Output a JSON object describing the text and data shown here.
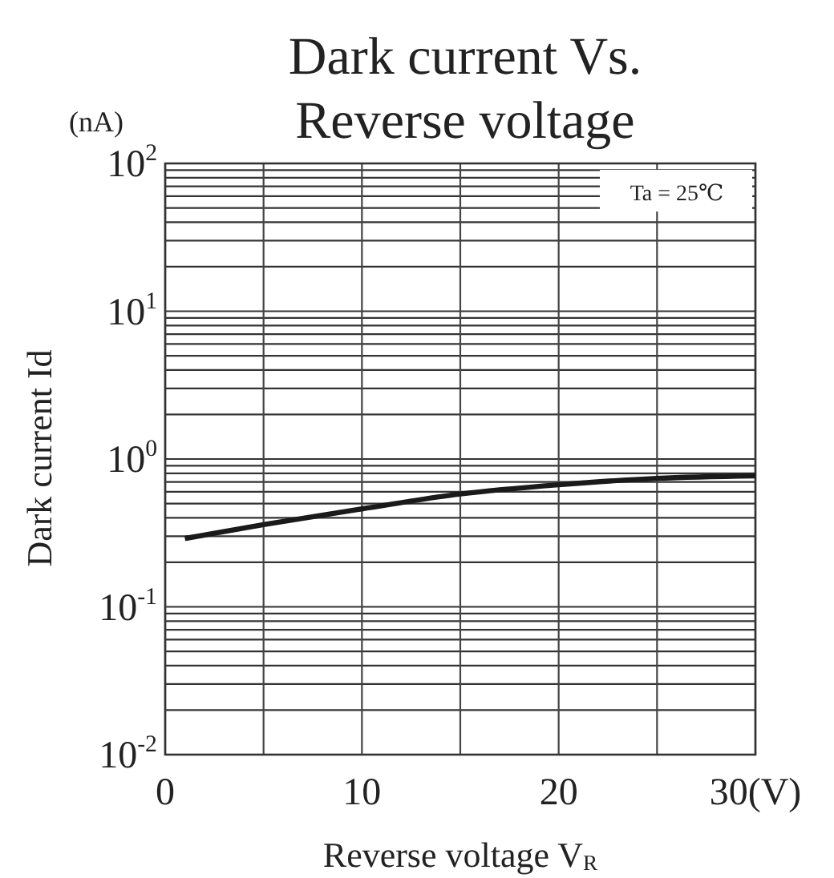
{
  "chart_data": {
    "type": "line",
    "title": "Dark current Vs.\nReverse voltage",
    "xlabel": "Reverse voltage  V$_{R}$",
    "ylabel": "Dark current  Id",
    "annotations": [
      "(nA)",
      "Ta = 25℃"
    ],
    "x": [
      1,
      5,
      10,
      15,
      20,
      25,
      30
    ],
    "series": [
      {
        "color": "#1a1a1a",
        "values": [
          0.29,
          0.36,
          0.46,
          0.58,
          0.67,
          0.74,
          0.77
        ]
      }
    ],
    "xlim": [
      0,
      30
    ],
    "xticks": [
      0,
      {
        "value": 5,
        "label": null
      },
      10,
      {
        "value": 15,
        "label": null
      },
      20,
      {
        "value": 25,
        "label": null
      },
      {
        "value": 30,
        "label": "30(V)"
      }
    ],
    "ylim": [
      0.01,
      100
    ],
    "log": true,
    "grid": true,
    "marker": "none",
    "line_style": "solid",
    "yticks": [
      {
        "value": 0.01,
        "label": "10$^{-2}$"
      },
      {
        "value": 0.02,
        "label": null
      },
      {
        "value": 0.03,
        "label": null
      },
      {
        "value": 0.04,
        "label": null
      },
      {
        "value": 0.05,
        "label": null
      },
      {
        "value": 0.06,
        "label": null
      },
      {
        "value": 0.07,
        "label": null
      },
      {
        "value": 0.08,
        "label": null
      },
      {
        "value": 0.09,
        "label": null
      },
      {
        "value": 0.1,
        "label": "10$^{-1}$"
      },
      {
        "value": 0.2,
        "label": null
      },
      {
        "value": 0.3,
        "label": null
      },
      {
        "value": 0.4,
        "label": null
      },
      {
        "value": 0.5,
        "label": null
      },
      {
        "value": 0.6,
        "label": null
      },
      {
        "value": 0.7,
        "label": null
      },
      {
        "value": 0.8,
        "label": null
      },
      {
        "value": 0.9,
        "label": null
      },
      {
        "value": 1,
        "label": "10$^{0}$"
      },
      {
        "value": 2,
        "label": null
      },
      {
        "value": 3,
        "label": null
      },
      {
        "value": 4,
        "label": null
      },
      {
        "value": 5,
        "label": null
      },
      {
        "value": 6,
        "label": null
      },
      {
        "value": 7,
        "label": null
      },
      {
        "value": 8,
        "label": null
      },
      {
        "value": 9,
        "label": null
      },
      {
        "value": 10,
        "label": "10$^{1}$"
      },
      {
        "value": 20,
        "label": null
      },
      {
        "value": 30,
        "label": null
      },
      {
        "value": 40,
        "label": null
      },
      {
        "value": 50,
        "label": null
      },
      {
        "value": 60,
        "label": null
      },
      {
        "value": 70,
        "label": null
      },
      {
        "value": 80,
        "label": null
      },
      {
        "value": 90,
        "label": null
      },
      {
        "value": 100,
        "label": "10$^{2}$"
      }
    ]
  }
}
